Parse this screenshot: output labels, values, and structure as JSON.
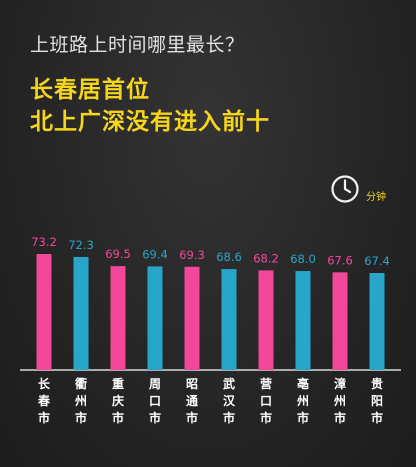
{
  "header": {
    "question": "上班路上时间哪里最长？",
    "headline_line1": "长春居首位",
    "headline_line2": "北上广深没有进入前十"
  },
  "unit": {
    "icon": "clock-icon",
    "label": "分钟"
  },
  "colors": {
    "pink": "#f3479a",
    "blue": "#27a6c9",
    "headline": "#f7d51c",
    "baseline": "#d8d8d8"
  },
  "chart_data": {
    "type": "bar",
    "categories": [
      "长春市",
      "衢州市",
      "重庆市",
      "周口市",
      "昭通市",
      "武汉市",
      "营口市",
      "亳州市",
      "漳州市",
      "贵阳市"
    ],
    "values": [
      73.2,
      72.3,
      69.5,
      69.4,
      69.3,
      68.6,
      68.2,
      68.0,
      67.6,
      67.4
    ],
    "value_labels": [
      "73.2",
      "72.3",
      "69.5",
      "69.4",
      "69.3",
      "68.6",
      "68.2",
      "68.0",
      "67.6",
      "67.4"
    ],
    "bar_colors": [
      "pink",
      "blue",
      "pink",
      "blue",
      "pink",
      "blue",
      "pink",
      "blue",
      "pink",
      "blue"
    ],
    "title": "上班路上时间哪里最长？",
    "ylabel": "分钟",
    "grid": false,
    "legend": "none"
  }
}
